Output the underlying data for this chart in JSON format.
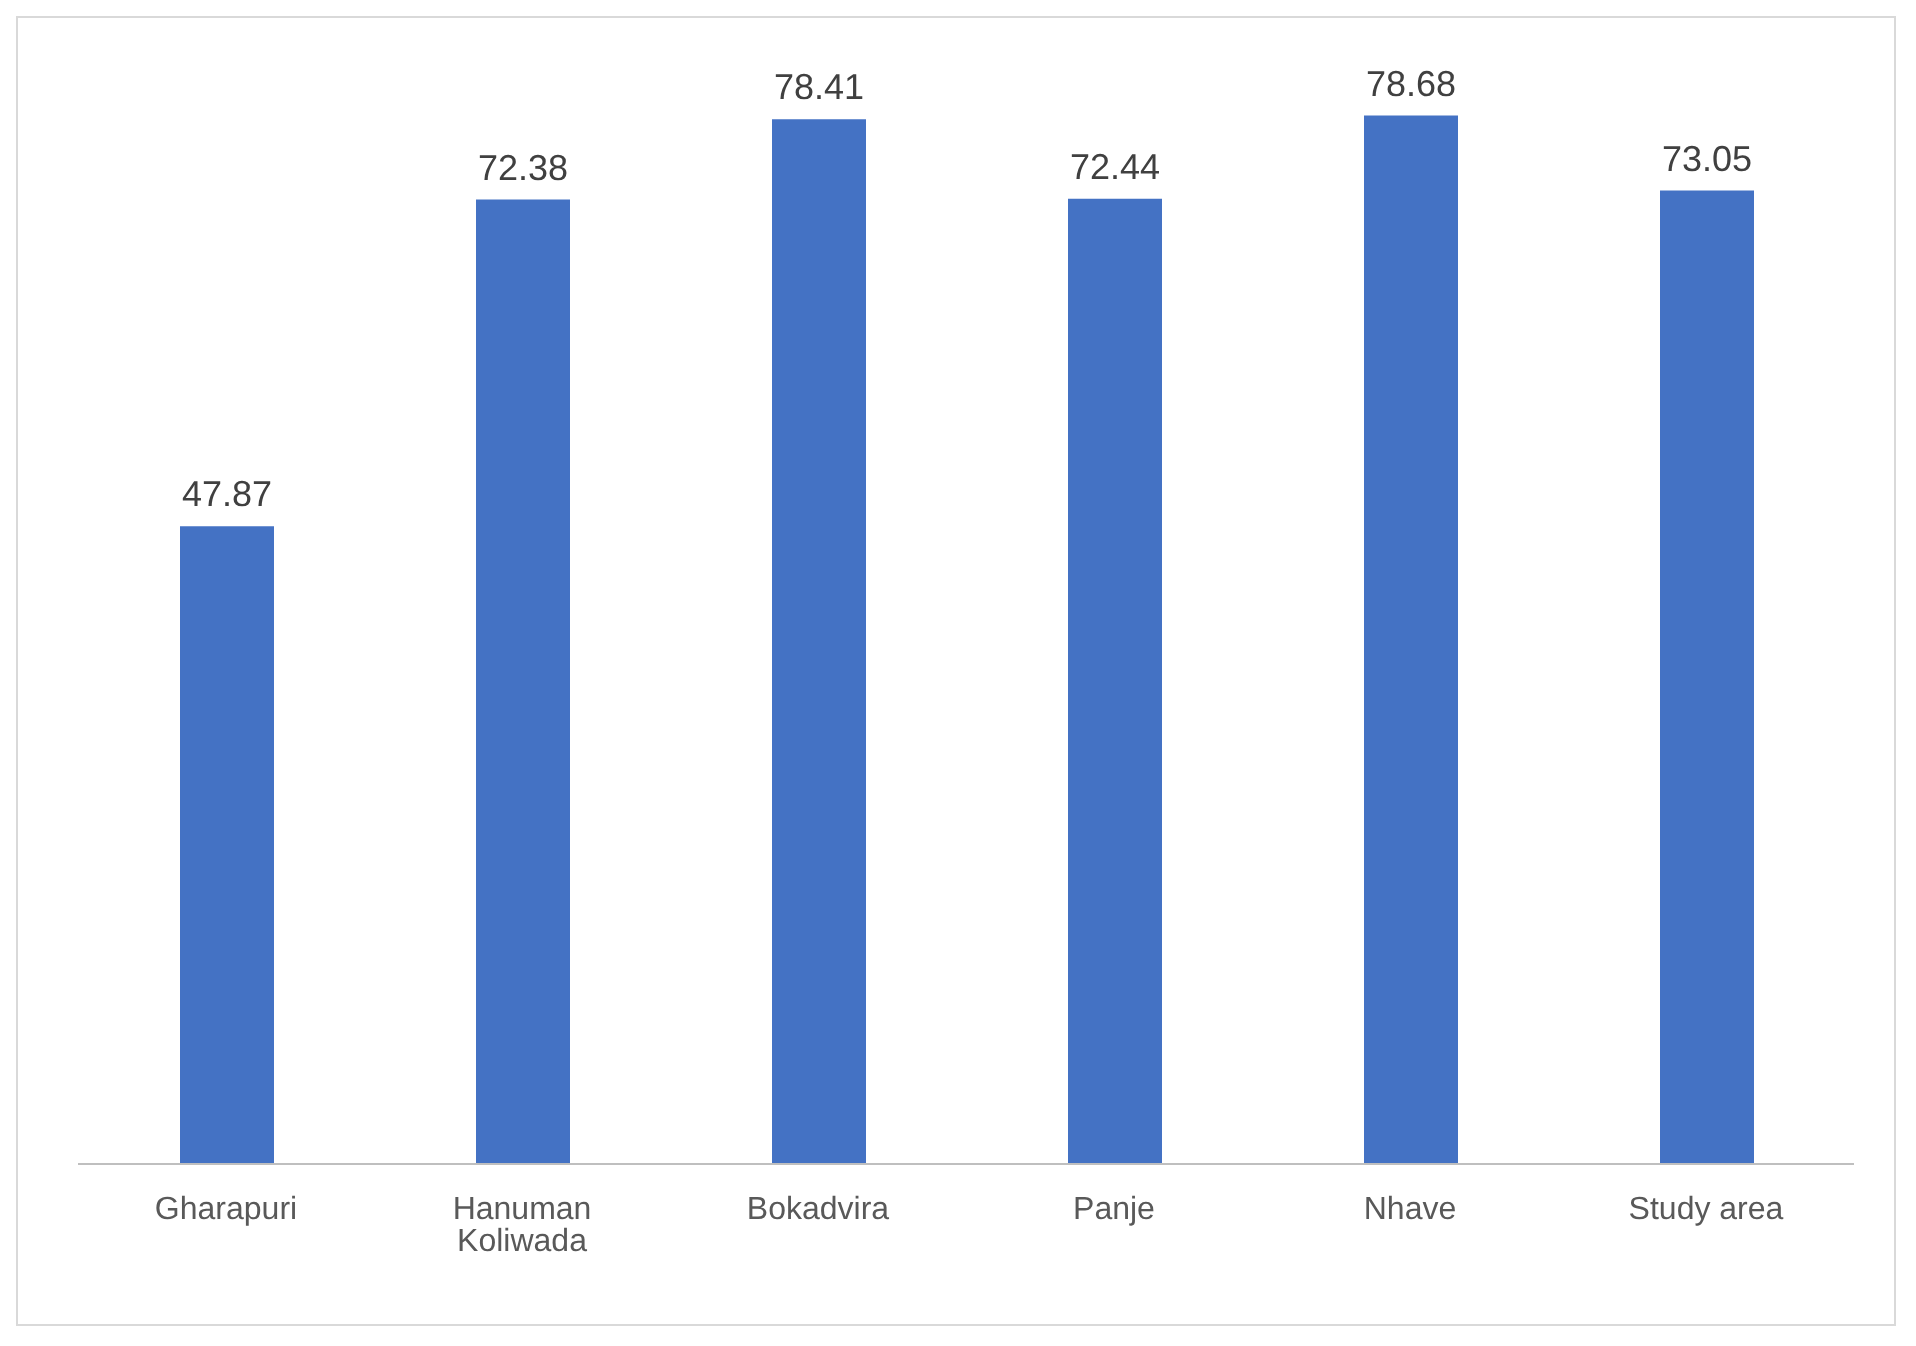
{
  "chart_data": {
    "type": "bar",
    "categories": [
      "Gharapuri",
      "Hanuman Koliwada",
      "Bokadvira",
      "Panje",
      "Nhave",
      "Study area"
    ],
    "values": [
      47.87,
      72.38,
      78.41,
      72.44,
      78.68,
      73.05
    ],
    "color": "#4472c4",
    "data_labels": true
  }
}
